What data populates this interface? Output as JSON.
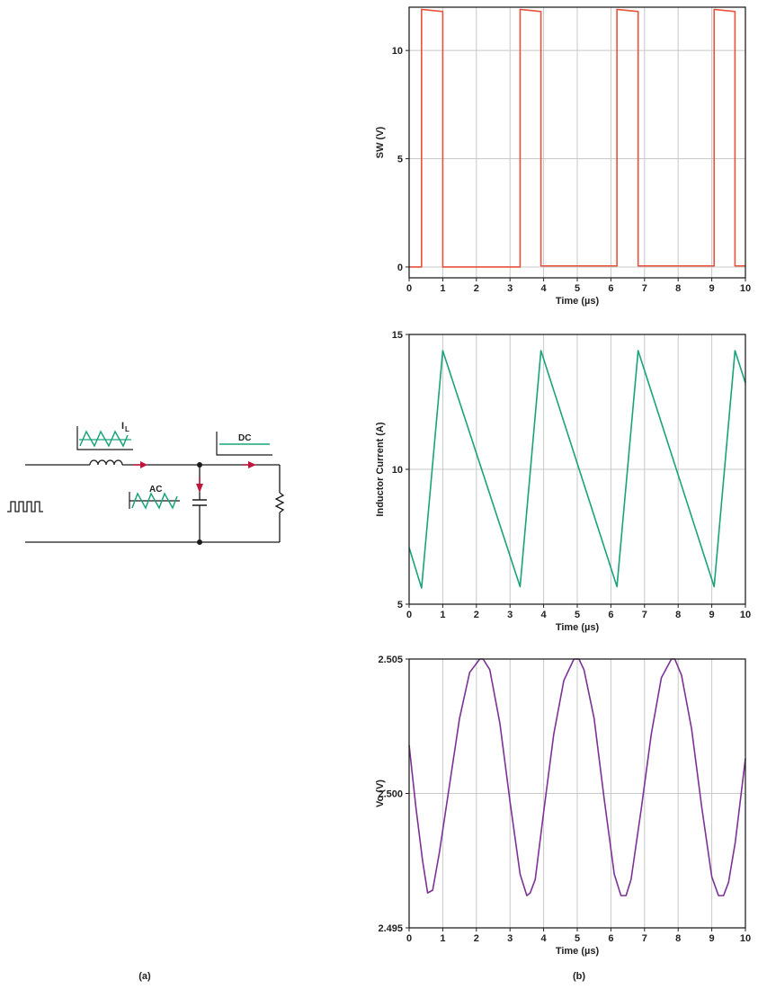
{
  "figure": {
    "caption_a": "(a)",
    "caption_b": "(b)"
  },
  "circuit": {
    "inductor_current_label": "I",
    "inductor_current_subscript": "L",
    "ac_label": "AC",
    "dc_label": "DC",
    "colors": {
      "wire": "#1a1a1a",
      "arrow": "#c0163c",
      "waveform": "#1aa37a"
    },
    "icons": [
      "square-wave-source-icon",
      "inductor-icon",
      "capacitor-icon",
      "resistor-icon",
      "current-arrow-icon"
    ]
  },
  "chart_data": [
    {
      "type": "line",
      "name": "sw",
      "xlabel": "Time (µs)",
      "ylabel": "SW (V)",
      "xlim": [
        0,
        10
      ],
      "ylim": [
        -0.5,
        12
      ],
      "xticks": [
        "0",
        "1",
        "2",
        "3",
        "4",
        "5",
        "6",
        "7",
        "8",
        "9",
        "10"
      ],
      "yticks": [
        0,
        5,
        10
      ],
      "yticklabels": [
        "0",
        "5",
        "10"
      ],
      "grid": true,
      "color": "#e8513c",
      "series": [
        {
          "x": [
            0,
            0.37,
            0.37,
            1.0,
            1.0,
            3.3,
            3.3,
            3.92,
            3.92,
            6.18,
            6.18,
            6.81,
            6.81,
            9.07,
            9.07,
            9.69,
            9.69,
            10
          ],
          "y": [
            0,
            0,
            11.9,
            11.8,
            0,
            0,
            11.9,
            11.8,
            0.05,
            0.05,
            11.9,
            11.8,
            0.05,
            0.05,
            11.9,
            11.8,
            0.05,
            0.05
          ]
        }
      ]
    },
    {
      "type": "line",
      "name": "inductor-current",
      "xlabel": "Time (µs)",
      "ylabel": "Inductor Current (A)",
      "xlim": [
        0,
        10
      ],
      "ylim": [
        5,
        15
      ],
      "xticks": [
        "0",
        "1",
        "2",
        "3",
        "4",
        "5",
        "6",
        "7",
        "8",
        "9",
        "10"
      ],
      "yticks": [
        5,
        10,
        15
      ],
      "yticklabels": [
        "5",
        "10",
        "15"
      ],
      "grid": true,
      "color": "#1aa37a",
      "series": [
        {
          "x": [
            0,
            0.37,
            1.0,
            3.3,
            3.92,
            6.18,
            6.81,
            9.07,
            9.69,
            10
          ],
          "y": [
            7.1,
            5.6,
            14.4,
            5.65,
            14.4,
            5.65,
            14.4,
            5.65,
            14.4,
            13.2
          ]
        }
      ]
    },
    {
      "type": "line",
      "name": "output-voltage",
      "xlabel": "Time (µs)",
      "ylabel": "Vo (V)",
      "xlim": [
        0,
        10
      ],
      "ylim": [
        2.495,
        2.505
      ],
      "xticks": [
        "0",
        "1",
        "2",
        "3",
        "4",
        "5",
        "6",
        "7",
        "8",
        "9",
        "10"
      ],
      "yticks": [
        2.495,
        2.5,
        2.505
      ],
      "yticklabels": [
        "2.495",
        "2.500",
        "2.505"
      ],
      "grid": true,
      "color": "#7b3294",
      "series": [
        {
          "x": [
            0,
            0.2,
            0.4,
            0.55,
            0.7,
            0.9,
            1.2,
            1.5,
            1.8,
            2.1,
            2.2,
            2.4,
            2.7,
            3.0,
            3.3,
            3.5,
            3.6,
            3.75,
            4.0,
            4.3,
            4.6,
            4.9,
            5.05,
            5.2,
            5.5,
            5.8,
            6.1,
            6.3,
            6.45,
            6.6,
            6.9,
            7.2,
            7.5,
            7.8,
            7.9,
            8.1,
            8.4,
            8.7,
            9.0,
            9.2,
            9.35,
            9.5,
            9.7,
            10.0
          ],
          "y": [
            2.5018,
            2.4995,
            2.4975,
            2.4963,
            2.4964,
            2.4978,
            2.5003,
            2.5028,
            2.5045,
            2.505,
            2.505,
            2.5046,
            2.5026,
            2.4997,
            2.497,
            2.4962,
            2.4963,
            2.4968,
            2.4993,
            2.5022,
            2.5042,
            2.505,
            2.505,
            2.5046,
            2.5028,
            2.4998,
            2.497,
            2.4962,
            2.4962,
            2.4968,
            2.4994,
            2.5022,
            2.5043,
            2.505,
            2.505,
            2.5044,
            2.5024,
            2.4995,
            2.4969,
            2.4962,
            2.4962,
            2.4967,
            2.4982,
            2.5013
          ]
        }
      ]
    }
  ]
}
